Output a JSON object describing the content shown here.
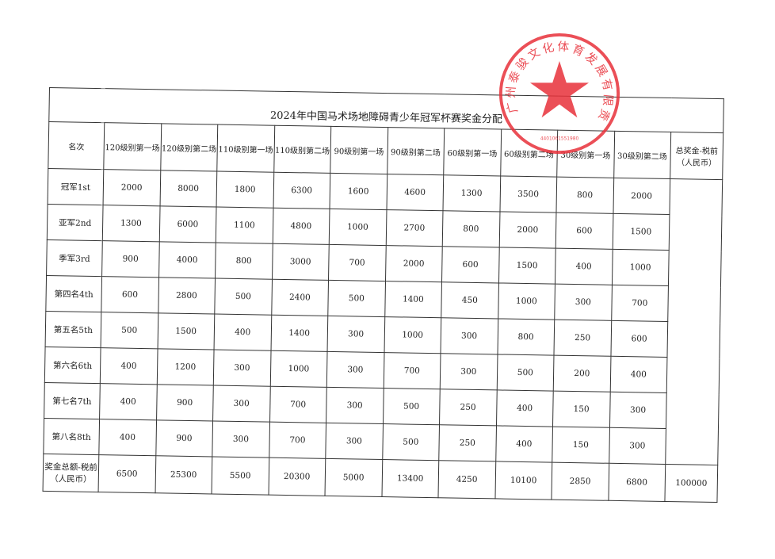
{
  "title": "2024年中国马术场地障碍青少年冠军杯赛奖金分配",
  "headers": [
    "名次",
    "120级别第一场",
    "120级别第二场",
    "110级别第一场",
    "110级别第二场",
    "90级别第一场",
    "90级别第二场",
    "60级别第一场",
    "60级别第二场",
    "30级别第一场",
    "30级别第二场",
    "总奖金-税前（人民币）"
  ],
  "rows": [
    {
      "rank": "冠军1st",
      "values": [
        "2000",
        "8000",
        "1800",
        "6300",
        "1600",
        "4600",
        "1300",
        "3500",
        "800",
        "2000"
      ]
    },
    {
      "rank": "亚军2nd",
      "values": [
        "1300",
        "6000",
        "1100",
        "4800",
        "1000",
        "2700",
        "800",
        "2000",
        "600",
        "1500"
      ]
    },
    {
      "rank": "季军3rd",
      "values": [
        "900",
        "4000",
        "800",
        "3000",
        "700",
        "2000",
        "600",
        "1500",
        "400",
        "1000"
      ]
    },
    {
      "rank": "第四名4th",
      "values": [
        "600",
        "2800",
        "500",
        "2400",
        "500",
        "1400",
        "450",
        "1000",
        "300",
        "700"
      ]
    },
    {
      "rank": "第五名5th",
      "values": [
        "500",
        "1500",
        "400",
        "1400",
        "300",
        "1000",
        "300",
        "800",
        "250",
        "600"
      ]
    },
    {
      "rank": "第六名6th",
      "values": [
        "400",
        "1200",
        "300",
        "1000",
        "300",
        "700",
        "300",
        "500",
        "200",
        "400"
      ]
    },
    {
      "rank": "第七名7th",
      "values": [
        "400",
        "900",
        "300",
        "700",
        "300",
        "500",
        "250",
        "400",
        "150",
        "300"
      ]
    },
    {
      "rank": "第八名8th",
      "values": [
        "400",
        "900",
        "300",
        "700",
        "300",
        "500",
        "250",
        "400",
        "150",
        "300"
      ]
    }
  ],
  "totals": {
    "label": "奖金总额-税前（人民币）",
    "values": [
      "6500",
      "25300",
      "5500",
      "20300",
      "5000",
      "13400",
      "4250",
      "10100",
      "2850",
      "6800"
    ],
    "grand_total": "100000"
  },
  "stamp": {
    "text": "广州泰骏文化体育发展有限责任公司",
    "number": "4401061551980",
    "color": "#e8313a"
  }
}
